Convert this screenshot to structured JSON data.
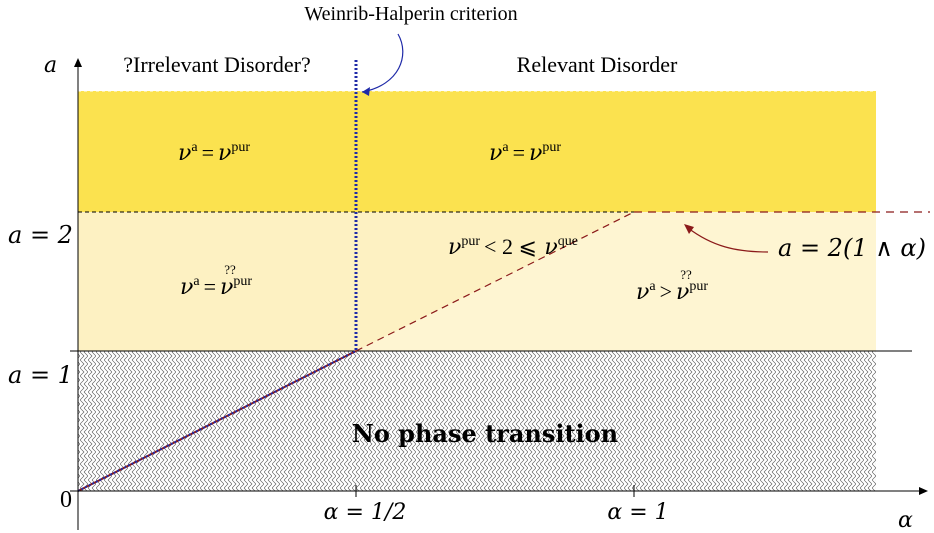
{
  "title": "Weinrib-Halperin criterion",
  "top_labels": {
    "left": "?Irrelevant Disorder?",
    "right": "Relevant Disorder"
  },
  "axes": {
    "y_label": "a",
    "x_label": "α",
    "y_ticks": [
      "a = 2",
      "a = 1",
      "0"
    ],
    "x_ticks": [
      "α = 1/2",
      "α = 1"
    ]
  },
  "regions": {
    "top_left": {
      "lhs": "ν",
      "lhs_sup": "a",
      "rel": "=",
      "rhs": "ν",
      "rhs_sup": "pur"
    },
    "top_right": {
      "lhs": "ν",
      "lhs_sup": "a",
      "rel": "=",
      "rhs": "ν",
      "rhs_sup": "pur"
    },
    "mid_left": {
      "lhs": "ν",
      "lhs_sup": "a",
      "rel": "=",
      "rel_over": "??",
      "rhs": "ν",
      "rhs_sup": "pur"
    },
    "mid_center": {
      "lhs": "ν",
      "lhs_sup": "pur",
      "mid": "< 2 ⩽ ",
      "rhs": "ν",
      "rhs_sup": "que"
    },
    "mid_right": {
      "lhs": "ν",
      "lhs_sup": "a",
      "rel": ">",
      "rel_over": "??",
      "rhs": "ν",
      "rhs_sup": "pur"
    },
    "bottom": "No phase transition"
  },
  "curve_label": "a = 2(1 ∧ α)",
  "colors": {
    "top_band": "#fbe24f",
    "mid_band": "#fdf1c2",
    "mid_right_band": "#fef5d2",
    "dashed_line": "#8b1a1a",
    "dotted_line": "#1f2aa8",
    "arrow_blue": "#1f2aa8",
    "arrow_red": "#8b1a1a"
  }
}
